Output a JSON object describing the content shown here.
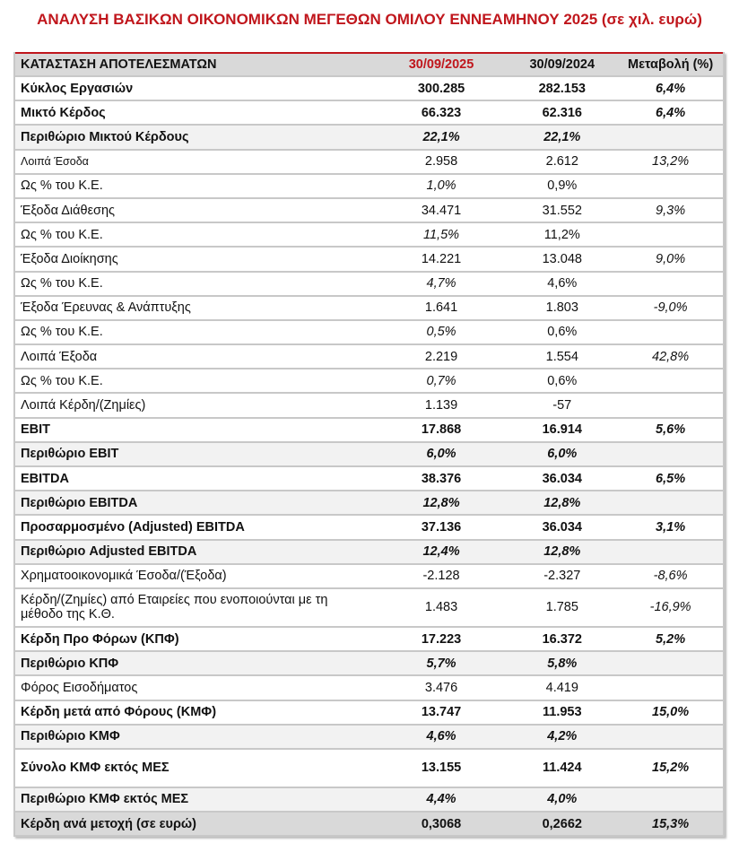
{
  "title": "ΑΝΑΛΥΣΗ ΒΑΣΙΚΩΝ ΟΙΚΟΝΟΜΙΚΩΝ ΜΕΓΕΘΩΝ ΟΜΙΛΟΥ ΕΝΝΕΑΜΗΝΟΥ 2025 (σε χιλ. ευρώ)",
  "accent_color": "#c0161c",
  "header": [
    "ΚΑΤΑΣΤΑΣΗ ΑΠΟΤΕΛΕΣΜΑΤΩΝ",
    "30/09/2025",
    "30/09/2024",
    "Μεταβολή (%)"
  ],
  "rows": [
    {
      "label": "Κύκλος Εργασιών",
      "v2025": "300.285",
      "v2024": "282.153",
      "change": "6,4%",
      "style": "bold"
    },
    {
      "label": "Μικτό Κέρδος",
      "v2025": "66.323",
      "v2024": "62.316",
      "change": "6,4%",
      "style": "bold"
    },
    {
      "label": "Περιθώριο Μικτού Κέρδους",
      "v2025": "22,1%",
      "v2024": "22,1%",
      "change": "",
      "style": "margin"
    },
    {
      "label": "Λοιπά Έσοδα",
      "v2025": "2.958",
      "v2024": "2.612",
      "change": "13,2%",
      "style": "small"
    },
    {
      "label": "Ως % του Κ.Ε.",
      "v2025": "1,0%",
      "v2024": "0,9%",
      "change": "",
      "style": "ratio"
    },
    {
      "label": "Έξοδα Διάθεσης",
      "v2025": "34.471",
      "v2024": "31.552",
      "change": "9,3%",
      "style": "normal"
    },
    {
      "label": "Ως % του Κ.Ε.",
      "v2025": "11,5%",
      "v2024": "11,2%",
      "change": "",
      "style": "ratio"
    },
    {
      "label": "Έξοδα Διοίκησης",
      "v2025": "14.221",
      "v2024": "13.048",
      "change": "9,0%",
      "style": "normal"
    },
    {
      "label": "Ως % του Κ.Ε.",
      "v2025": "4,7%",
      "v2024": "4,6%",
      "change": "",
      "style": "ratio"
    },
    {
      "label": "Έξοδα Έρευνας & Ανάπτυξης",
      "v2025": "1.641",
      "v2024": "1.803",
      "change": "-9,0%",
      "style": "normal"
    },
    {
      "label": "Ως % του Κ.Ε.",
      "v2025": "0,5%",
      "v2024": "0,6%",
      "change": "",
      "style": "ratio"
    },
    {
      "label": "Λοιπά Έξοδα",
      "v2025": "2.219",
      "v2024": "1.554",
      "change": "42,8%",
      "style": "normal"
    },
    {
      "label": "Ως % του Κ.Ε.",
      "v2025": "0,7%",
      "v2024": "0,6%",
      "change": "",
      "style": "ratio"
    },
    {
      "label": "Λοιπά Κέρδη/(Ζημίες)",
      "v2025": "1.139",
      "v2024": "-57",
      "change": "",
      "style": "normal"
    },
    {
      "label": "EBIT",
      "v2025": "17.868",
      "v2024": "16.914",
      "change": "5,6%",
      "style": "bold"
    },
    {
      "label": "Περιθώριο EBIT",
      "v2025": "6,0%",
      "v2024": "6,0%",
      "change": "",
      "style": "margin"
    },
    {
      "label": "EBITDA",
      "v2025": "38.376",
      "v2024": "36.034",
      "change": "6,5%",
      "style": "bold"
    },
    {
      "label": "Περιθώριο EBITDA",
      "v2025": "12,8%",
      "v2024": "12,8%",
      "change": "",
      "style": "margin"
    },
    {
      "label": "Προσαρμοσμένο (Adjusted) EBITDA",
      "v2025": "37.136",
      "v2024": "36.034",
      "change": "3,1%",
      "style": "bold"
    },
    {
      "label": "Περιθώριο Adjusted EBITDA",
      "v2025": "12,4%",
      "v2024": "12,8%",
      "change": "",
      "style": "margin"
    },
    {
      "label": "Χρηματοοικονομικά Έσοδα/(Έξοδα)",
      "v2025": "-2.128",
      "v2024": "-2.327",
      "change": "-8,6%",
      "style": "normal"
    },
    {
      "label": "Κέρδη/(Ζημίες) από Εταιρείες που ενοποιούνται με τη μέθοδο της Κ.Θ.",
      "v2025": "1.483",
      "v2024": "1.785",
      "change": "-16,9%",
      "style": "tall"
    },
    {
      "label": "Κέρδη Προ Φόρων  (ΚΠΦ)",
      "v2025": "17.223",
      "v2024": "16.372",
      "change": "5,2%",
      "style": "bold"
    },
    {
      "label": "Περιθώριο ΚΠΦ",
      "v2025": "5,7%",
      "v2024": "5,8%",
      "change": "",
      "style": "margin"
    },
    {
      "label": "Φόρος Εισοδήματος",
      "v2025": "3.476",
      "v2024": "4.419",
      "change": "",
      "style": "normal"
    },
    {
      "label": "Κέρδη μετά από Φόρους (ΚΜΦ)",
      "v2025": "13.747",
      "v2024": "11.953",
      "change": "15,0%",
      "style": "bold"
    },
    {
      "label": "Περιθώριο ΚΜΦ",
      "v2025": "4,6%",
      "v2024": "4,2%",
      "change": "",
      "style": "margin"
    },
    {
      "label": "Σύνολο ΚΜΦ εκτός ΜΕΣ",
      "v2025": "13.155",
      "v2024": "11.424",
      "change": "15,2%",
      "style": "bold tall"
    },
    {
      "label": "Περιθώριο ΚΜΦ εκτός ΜΕΣ",
      "v2025": "4,4%",
      "v2024": "4,0%",
      "change": "",
      "style": "margin"
    },
    {
      "label": "Κέρδη ανά μετοχή (σε ευρώ)",
      "v2025": "0,3068",
      "v2024": "0,2662",
      "change": "15,3%",
      "style": "eps"
    }
  ]
}
